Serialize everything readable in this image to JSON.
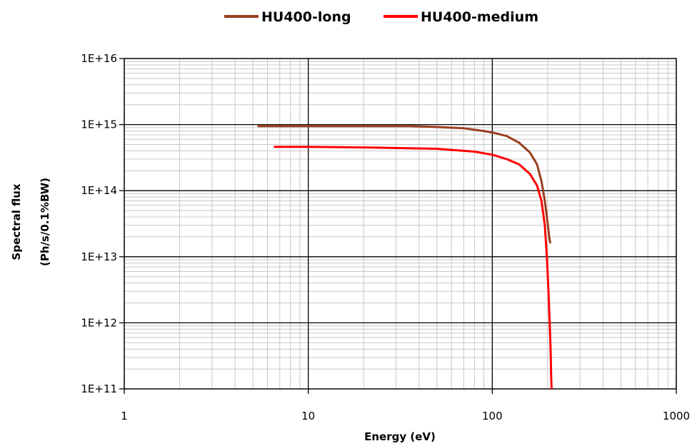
{
  "chart_data": {
    "type": "line",
    "title": "",
    "xlabel": "Energy (eV)",
    "ylabel": [
      "Spectral flux",
      "(Ph/s/0.1%BW)"
    ],
    "x_scale": "log",
    "y_scale": "log",
    "xlim": [
      1,
      1000
    ],
    "ylim": [
      100000000000.0,
      1e+16
    ],
    "x_ticks": [
      1,
      10,
      100,
      1000
    ],
    "x_tick_labels": [
      "1",
      "10",
      "100",
      "1000"
    ],
    "y_ticks": [
      100000000000.0,
      1000000000000.0,
      10000000000000.0,
      100000000000000.0,
      1000000000000000.0,
      1e+16
    ],
    "y_tick_labels": [
      "1E+11",
      "1E+12",
      "1E+13",
      "1E+14",
      "1E+15",
      "1E+16"
    ],
    "grid": true,
    "legend": {
      "position": "top",
      "entries": [
        "HU400-long",
        "HU400-medium"
      ]
    },
    "series": [
      {
        "name": "HU400-long",
        "color": "#9b3d1f",
        "x": [
          5.3,
          10,
          20,
          36,
          50,
          70,
          90,
          100,
          120,
          140,
          160,
          175,
          185,
          193,
          198,
          202,
          205,
          207
        ],
        "y": [
          950000000000000.0,
          950000000000000.0,
          950000000000000.0,
          950000000000000.0,
          920000000000000.0,
          880000000000000.0,
          800000000000000.0,
          760000000000000.0,
          670000000000000.0,
          530000000000000.0,
          380000000000000.0,
          250000000000000.0,
          140000000000000.0,
          70000000000000.0,
          40000000000000.0,
          25000000000000.0,
          18000000000000.0,
          16000000000000.0
        ]
      },
      {
        "name": "HU400-medium",
        "color": "#ff0000",
        "x": [
          6.5,
          10,
          22,
          50,
          80,
          100,
          120,
          140,
          160,
          175,
          185,
          193,
          198,
          202,
          205,
          207,
          208,
          209,
          210
        ],
        "y": [
          460000000000000.0,
          460000000000000.0,
          450000000000000.0,
          430000000000000.0,
          390000000000000.0,
          350000000000000.0,
          300000000000000.0,
          250000000000000.0,
          180000000000000.0,
          120000000000000.0,
          70000000000000.0,
          30000000000000.0,
          10000000000000.0,
          3000000000000.0,
          1000000000000.0,
          500000000000.0,
          300000000000.0,
          150000000000.0,
          100000000000.0
        ]
      }
    ]
  }
}
